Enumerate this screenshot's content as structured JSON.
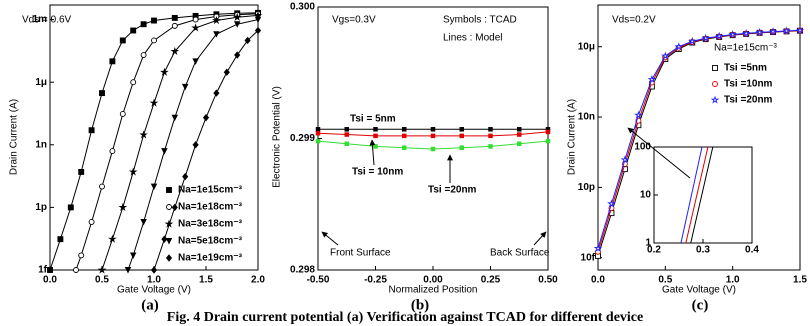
{
  "chart_data": [
    {
      "type": "line",
      "panel_label": "(a)",
      "xlabel": "Gate Voltage (V)",
      "ylabel": "Drain Current (A)",
      "annotations": [
        "Vds = 0.6V"
      ],
      "yscale": "log",
      "grid": false,
      "legend": "lower right",
      "xlim": [
        0,
        2
      ],
      "xticks": [
        {
          "value": 0,
          "label": "0.0"
        },
        0.5,
        {
          "value": 1,
          "label": "1.0"
        },
        1.5,
        {
          "value": 2,
          "label": "2.0"
        }
      ],
      "ylim": [
        1e-15,
        0.005
      ],
      "yticks": [
        {
          "value": 1e-15,
          "label": "1f"
        },
        {
          "value": 1e-12,
          "label": "1p"
        },
        {
          "value": 1e-09,
          "label": "1n"
        },
        {
          "value": 1e-06,
          "label": "1μ"
        },
        {
          "value": 0.001,
          "label": "1m"
        }
      ],
      "series": [
        {
          "name": "Na=1e15cm⁻³",
          "color": "#000000",
          "marker": "square",
          "marker_filled": true,
          "x": [
            0,
            0.1,
            0.2,
            0.3,
            0.4,
            0.5,
            0.6,
            0.7,
            0.8,
            0.9,
            1.0,
            1.2,
            1.4,
            1.6,
            1.8,
            2.0
          ],
          "values": [
            1e-15,
            3e-14,
            1e-12,
            5e-11,
            5e-09,
            3e-07,
            1e-05,
            0.0001,
            0.0003,
            0.0006,
            0.0009,
            0.0012,
            0.0015,
            0.0018,
            0.002,
            0.0021
          ]
        },
        {
          "name": "Na=1e18cm⁻³",
          "color": "#000000",
          "marker": "circle",
          "marker_filled": false,
          "x": [
            0.25,
            0.3,
            0.4,
            0.5,
            0.6,
            0.7,
            0.8,
            0.9,
            1.0,
            1.2,
            1.4,
            1.6,
            1.8,
            2.0
          ],
          "values": [
            1e-15,
            5e-15,
            2e-13,
            1e-11,
            5e-10,
            3e-08,
            1e-06,
            2e-05,
            0.0001,
            0.0005,
            0.001,
            0.0014,
            0.0017,
            0.0019
          ]
        },
        {
          "name": "Na=3e18cm⁻³",
          "color": "#000000",
          "marker": "star",
          "marker_filled": true,
          "x": [
            0.5,
            0.6,
            0.7,
            0.8,
            0.9,
            1.0,
            1.1,
            1.2,
            1.4,
            1.6,
            1.8,
            2.0
          ],
          "values": [
            1e-15,
            3e-14,
            1e-12,
            5e-11,
            3e-09,
            1e-07,
            3e-06,
            3e-05,
            0.0004,
            0.0009,
            0.0013,
            0.0016
          ]
        },
        {
          "name": "Na=5e18cm⁻³",
          "color": "#000000",
          "marker": "triangle-down",
          "marker_filled": true,
          "x": [
            0.75,
            0.8,
            0.9,
            1.0,
            1.1,
            1.2,
            1.3,
            1.4,
            1.6,
            1.8,
            2.0
          ],
          "values": [
            1e-15,
            5e-15,
            2e-13,
            1e-11,
            5e-10,
            2e-08,
            6e-07,
            1e-05,
            0.0002,
            0.0006,
            0.001
          ]
        },
        {
          "name": "Na=1e19cm⁻³",
          "color": "#000000",
          "marker": "diamond",
          "marker_filled": true,
          "x": [
            1.0,
            1.1,
            1.2,
            1.3,
            1.4,
            1.5,
            1.6,
            1.7,
            1.8,
            1.9,
            2.0
          ],
          "values": [
            1e-15,
            3e-14,
            1e-12,
            3e-11,
            1e-09,
            2e-08,
            3e-07,
            3e-06,
            2e-05,
            0.0001,
            0.0003
          ]
        }
      ]
    },
    {
      "type": "line",
      "panel_label": "(b)",
      "xlabel": "Normalized Position",
      "ylabel": "Electronic Potential (V)",
      "annotations": [
        "Vgs=0.3V",
        "Symbols : TCAD",
        "Lines : Model",
        "Front Surface",
        "Back Surface"
      ],
      "grid": false,
      "legend": "labels",
      "xlim": [
        -0.5,
        0.5
      ],
      "xticks": [
        {
          "value": -0.5,
          "label": "-0.50"
        },
        -0.25,
        {
          "value": 0,
          "label": "0.00"
        },
        0.25,
        {
          "value": 0.5,
          "label": "0.50"
        }
      ],
      "ylim": [
        0.298,
        0.3
      ],
      "yticks": [
        0.298,
        0.299,
        {
          "value": 0.3,
          "label": "0.300"
        }
      ],
      "x": [
        -0.5,
        -0.375,
        -0.25,
        -0.125,
        0,
        0.125,
        0.25,
        0.375,
        0.5
      ],
      "series": [
        {
          "name": "Tsi = 5nm",
          "color": "#000000",
          "marker": "square",
          "marker_filled": true,
          "values": [
            0.29907,
            0.29907,
            0.29907,
            0.29907,
            0.29907,
            0.29907,
            0.29907,
            0.29907,
            0.29907
          ]
        },
        {
          "name": "Tsi = 10nm",
          "color": "#e00000",
          "marker": "square",
          "marker_filled": true,
          "values": [
            0.29904,
            0.29903,
            0.29902,
            0.29902,
            0.29902,
            0.29902,
            0.29902,
            0.29903,
            0.29905
          ]
        },
        {
          "name": "Tsi =20nm",
          "color": "#33dd33",
          "marker": "square",
          "marker_filled": true,
          "values": [
            0.29898,
            0.29896,
            0.29894,
            0.29893,
            0.29892,
            0.29893,
            0.29894,
            0.29896,
            0.29898
          ]
        }
      ]
    },
    {
      "type": "line",
      "panel_label": "(c)",
      "xlabel": "Gate Voltage (V)",
      "ylabel": "Drain Current (A)",
      "annotations": [
        "Vds=0.2V",
        "Na=1e15cm⁻³"
      ],
      "yscale": "log",
      "grid": false,
      "legend": "center right",
      "xlim": [
        0,
        1.5
      ],
      "xticks": [
        {
          "value": 0,
          "label": "0.0"
        },
        0.5,
        {
          "value": 1,
          "label": "1.0"
        },
        1.5
      ],
      "ylim": [
        3e-15,
        0.0006
      ],
      "yticks": [
        {
          "value": 1e-14,
          "label": "10f"
        },
        {
          "value": 1e-11,
          "label": "10p"
        },
        {
          "value": 1e-08,
          "label": "10n"
        },
        {
          "value": 1e-05,
          "label": "10μ"
        }
      ],
      "x": [
        0,
        0.1,
        0.2,
        0.3,
        0.4,
        0.5,
        0.6,
        0.7,
        0.8,
        0.9,
        1.0,
        1.1,
        1.2,
        1.3,
        1.4,
        1.5
      ],
      "series": [
        {
          "name": "Tsi =5nm",
          "color": "#000000",
          "marker": "square",
          "marker_filled": false,
          "values": [
            1.2e-14,
            8e-13,
            6e-11,
            4.5e-09,
            2e-07,
            3e-06,
            8e-06,
            1.5e-05,
            2.1e-05,
            2.6e-05,
            3.1e-05,
            3.5e-05,
            3.9e-05,
            4.2e-05,
            4.5e-05,
            4.8e-05
          ]
        },
        {
          "name": "Tsi =10nm",
          "color": "#e00000",
          "marker": "circle",
          "marker_filled": false,
          "values": [
            1.8e-14,
            1.3e-12,
            1e-10,
            7e-09,
            3e-07,
            3.5e-06,
            9e-06,
            1.6e-05,
            2.2e-05,
            2.7e-05,
            3.2e-05,
            3.6e-05,
            4e-05,
            4.3e-05,
            4.6e-05,
            4.9e-05
          ]
        },
        {
          "name": "Tsi =20nm",
          "color": "#2020ff",
          "marker": "star",
          "marker_filled": false,
          "values": [
            2.5e-14,
            2e-12,
            1.5e-10,
            1.2e-08,
            4e-07,
            4e-06,
            1e-05,
            1.7e-05,
            2.3e-05,
            2.8e-05,
            3.3e-05,
            3.7e-05,
            4.1e-05,
            4.4e-05,
            4.7e-05,
            5e-05
          ]
        }
      ],
      "inset": {
        "yscale": "log",
        "xlim": [
          0.2,
          0.4
        ],
        "xticks": [
          0.2,
          0.3,
          0.4
        ],
        "ylim": [
          1,
          100
        ],
        "yticks": [
          1,
          10,
          100
        ],
        "series": [
          {
            "color": "#000000",
            "x": [
              0.275,
              0.32
            ],
            "values": [
              1,
              100
            ]
          },
          {
            "color": "#e00000",
            "x": [
              0.265,
              0.31
            ],
            "values": [
              1,
              100
            ]
          },
          {
            "color": "#2020ff",
            "x": [
              0.255,
              0.298
            ],
            "values": [
              1,
              100
            ]
          }
        ]
      }
    }
  ],
  "caption": "Fig. 4 Drain current potential (a) Verification against TCAD for different device"
}
